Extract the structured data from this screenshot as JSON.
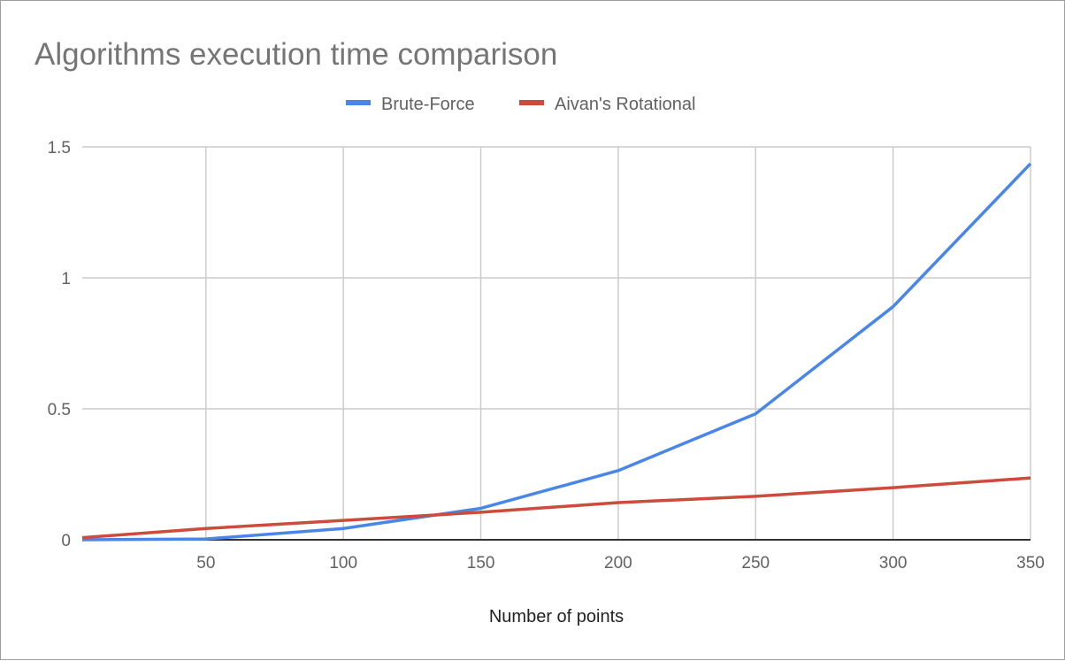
{
  "chart_data": {
    "type": "line",
    "title": "Algorithms execution time comparison",
    "xlabel": "Number of points",
    "ylabel": "",
    "x": [
      5,
      50,
      100,
      150,
      200,
      250,
      300,
      350
    ],
    "xlim": [
      5,
      350
    ],
    "ylim": [
      0,
      1.5
    ],
    "xticks": [
      50,
      100,
      150,
      200,
      250,
      300,
      350
    ],
    "yticks": [
      0,
      0.5,
      1,
      1.5
    ],
    "xtick_labels": [
      "50",
      "100",
      "150",
      "200",
      "250",
      "300",
      "350"
    ],
    "ytick_labels": [
      "0",
      "0.5",
      "1",
      "1.5"
    ],
    "grid": true,
    "legend_position": "top",
    "series": [
      {
        "name": "Brute-Force",
        "color": "#4a86e8",
        "values": [
          0,
          0.003,
          0.043,
          0.12,
          0.264,
          0.481,
          0.89,
          1.436
        ]
      },
      {
        "name": "Aivan's Rotational",
        "color": "#cc4b3c",
        "values": [
          0.008,
          0.043,
          0.074,
          0.105,
          0.142,
          0.166,
          0.199,
          0.236
        ]
      }
    ]
  }
}
